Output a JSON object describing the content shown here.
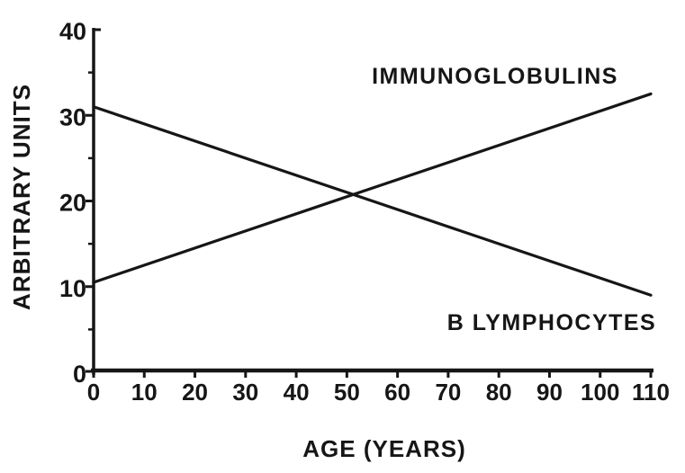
{
  "figure": {
    "background": "#ffffff",
    "ink_color": "#161616"
  },
  "chart_data": {
    "type": "line",
    "title": "",
    "xlabel": "AGE (YEARS)",
    "ylabel": "ARBITRARY UNITS",
    "xlim": [
      0,
      110
    ],
    "ylim": [
      0,
      40
    ],
    "x_ticks": [
      0,
      10,
      20,
      30,
      40,
      50,
      60,
      70,
      80,
      90,
      100,
      110
    ],
    "y_ticks": [
      0,
      10,
      20,
      30,
      40
    ],
    "y_minor_ticks": [
      5,
      15,
      25,
      35
    ],
    "grid": false,
    "legend": "inline-labels",
    "series": [
      {
        "name": "IMMUNOGLOBULINS",
        "x": [
          0,
          110
        ],
        "values": [
          10.5,
          32.5
        ],
        "trend": "increasing",
        "color": "#161616"
      },
      {
        "name": "B LYMPHOCYTES",
        "x": [
          0,
          110
        ],
        "values": [
          31,
          9
        ],
        "trend": "decreasing",
        "color": "#161616"
      }
    ]
  }
}
